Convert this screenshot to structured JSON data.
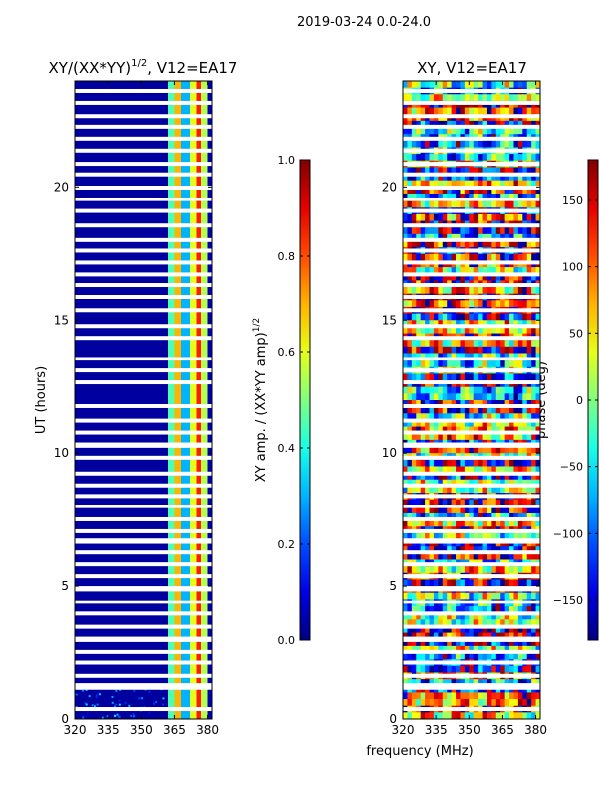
{
  "figure": {
    "suptitle": "2019-03-24 0.0-24.0",
    "xlabel": "frequency (MHz)"
  },
  "chart_data": [
    {
      "type": "heatmap",
      "title": "XY/(XX*YY)",
      "title_exponent": "1/2",
      "title_suffix": ", V12=EA17",
      "xlabel": "frequency (MHz)",
      "ylabel": "UT (hours)",
      "xlim": [
        320,
        382
      ],
      "ylim": [
        0,
        24
      ],
      "xticks": [
        "320",
        "335",
        "350",
        "365",
        "380"
      ],
      "xtick_values": [
        320,
        335,
        350,
        365,
        380
      ],
      "yticks": [
        "0",
        "5",
        "10",
        "15",
        "20"
      ],
      "ytick_values": [
        0,
        5,
        10,
        15,
        20
      ],
      "colormap": "jet",
      "colorbar": {
        "label": "XY amp. / (XX*YY amp)",
        "label_exponent": "1/2",
        "vmin": 0.0,
        "vmax": 1.0,
        "ticks": [
          "0.0",
          "0.2",
          "0.4",
          "0.6",
          "0.8",
          "1.0"
        ],
        "tick_values": [
          0.0,
          0.2,
          0.4,
          0.6,
          0.8,
          1.0
        ]
      },
      "columns": [
        {
          "freq": [
            320,
            362
          ],
          "value": 0.03
        },
        {
          "freq": [
            362,
            365
          ],
          "value": 0.45
        },
        {
          "freq": [
            365,
            368
          ],
          "value": 0.7
        },
        {
          "freq": [
            368,
            372
          ],
          "value": 0.3
        },
        {
          "freq": [
            372,
            375
          ],
          "value": 0.6
        },
        {
          "freq": [
            375,
            377
          ],
          "value": 0.85
        },
        {
          "freq": [
            377,
            380
          ],
          "value": 0.55
        },
        {
          "freq": [
            380,
            382
          ],
          "value": 0.05
        }
      ]
    },
    {
      "type": "heatmap",
      "title": "XY, V12=EA17",
      "xlabel": "frequency (MHz)",
      "ylabel": "",
      "xlim": [
        320,
        382
      ],
      "ylim": [
        0,
        24
      ],
      "xticks": [
        "320",
        "335",
        "350",
        "365",
        "380"
      ],
      "xtick_values": [
        320,
        335,
        350,
        365,
        380
      ],
      "yticks": [
        "0",
        "5",
        "10",
        "15",
        "20"
      ],
      "ytick_values": [
        0,
        5,
        10,
        15,
        20
      ],
      "colormap": "jet",
      "colorbar": {
        "label": "phase (deg)",
        "vmin": -180,
        "vmax": 180,
        "ticks": [
          "−150",
          "−100",
          "−50",
          "0",
          "50",
          "100",
          "150"
        ],
        "tick_values": [
          -150,
          -100,
          -50,
          0,
          50,
          100,
          150
        ]
      }
    }
  ],
  "flagged_hour_bands": [
    [
      0.3,
      0.45
    ],
    [
      1.1,
      1.35
    ],
    [
      1.55,
      1.7
    ],
    [
      2.05,
      2.2
    ],
    [
      2.45,
      2.6
    ],
    [
      2.9,
      3.1
    ],
    [
      3.4,
      3.55
    ],
    [
      3.9,
      4.05
    ],
    [
      4.35,
      4.45
    ],
    [
      4.8,
      5.0
    ],
    [
      5.3,
      5.45
    ],
    [
      5.75,
      5.9
    ],
    [
      6.2,
      6.35
    ],
    [
      6.6,
      6.8
    ],
    [
      7.0,
      7.15
    ],
    [
      7.45,
      7.6
    ],
    [
      7.95,
      8.05
    ],
    [
      8.3,
      8.45
    ],
    [
      8.7,
      8.85
    ],
    [
      9.15,
      9.3
    ],
    [
      9.75,
      9.9
    ],
    [
      10.2,
      10.4
    ],
    [
      10.7,
      10.85
    ],
    [
      11.15,
      11.3
    ],
    [
      11.7,
      11.85
    ],
    [
      12.6,
      12.75
    ],
    [
      13.05,
      13.2
    ],
    [
      13.5,
      13.6
    ],
    [
      14.25,
      14.4
    ],
    [
      14.7,
      14.85
    ],
    [
      15.3,
      15.45
    ],
    [
      15.8,
      15.95
    ],
    [
      16.25,
      16.4
    ],
    [
      16.65,
      16.8
    ],
    [
      17.1,
      17.25
    ],
    [
      17.55,
      17.7
    ],
    [
      17.95,
      18.1
    ],
    [
      18.5,
      18.65
    ],
    [
      19.05,
      19.2
    ],
    [
      19.5,
      19.6
    ],
    [
      19.9,
      20.05
    ],
    [
      20.4,
      20.55
    ],
    [
      20.8,
      20.95
    ],
    [
      21.3,
      21.45
    ],
    [
      21.75,
      21.9
    ],
    [
      22.2,
      22.35
    ],
    [
      22.6,
      22.75
    ],
    [
      23.1,
      23.25
    ],
    [
      23.55,
      23.7
    ]
  ]
}
